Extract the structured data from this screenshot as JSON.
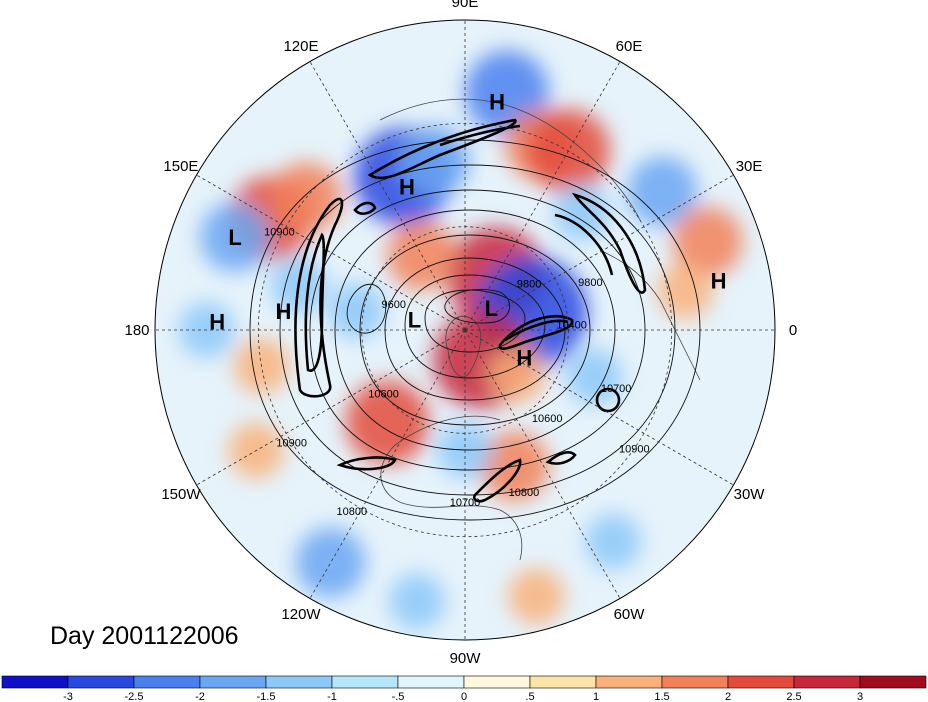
{
  "date_label": "Day 2001122006",
  "longitude_labels": [
    {
      "text": "90E",
      "lon": 90
    },
    {
      "text": "60E",
      "lon": 60
    },
    {
      "text": "30E",
      "lon": 30
    },
    {
      "text": "0",
      "lon": 0
    },
    {
      "text": "30W",
      "lon": -30
    },
    {
      "text": "60W",
      "lon": -60
    },
    {
      "text": "90W",
      "lon": -90
    },
    {
      "text": "120W",
      "lon": -120
    },
    {
      "text": "150W",
      "lon": -150
    },
    {
      "text": "180",
      "lon": 180
    },
    {
      "text": "150E",
      "lon": 150
    },
    {
      "text": "120E",
      "lon": 120
    }
  ],
  "pressure_systems": [
    {
      "type": "H",
      "label": "H",
      "lon": 82,
      "lat": 23
    },
    {
      "type": "H",
      "label": "H",
      "lon": 112,
      "lat": 45
    },
    {
      "type": "L",
      "label": "L",
      "lon": 158,
      "lat": 18
    },
    {
      "type": "H",
      "label": "H",
      "lon": 178,
      "lat": 18
    },
    {
      "type": "H",
      "label": "H",
      "lon": 174,
      "lat": 37
    },
    {
      "type": "L",
      "label": "L",
      "lon": 168,
      "lat": 75
    },
    {
      "type": "L",
      "label": "L",
      "lon": 40,
      "lat": 80
    },
    {
      "type": "H",
      "label": "H",
      "lon": -25,
      "lat": 71
    },
    {
      "type": "H",
      "label": "H",
      "lon": 11,
      "lat": 15
    }
  ],
  "contour_labels": [
    {
      "text": "10900",
      "lon": 152,
      "lat": 29
    },
    {
      "text": "9600",
      "lon": 160,
      "lat": 68
    },
    {
      "text": "9800",
      "lon": 36,
      "lat": 67
    },
    {
      "text": "9800",
      "lon": 21,
      "lat": 51
    },
    {
      "text": "10400",
      "lon": 3,
      "lat": 59
    },
    {
      "text": "10700",
      "lon": -21,
      "lat": 43
    },
    {
      "text": "10600",
      "lon": -47,
      "lat": 55
    },
    {
      "text": "10900",
      "lon": -35,
      "lat": 30
    },
    {
      "text": "10800",
      "lon": -70,
      "lat": 40
    },
    {
      "text": "10700",
      "lon": -90,
      "lat": 40
    },
    {
      "text": "10600",
      "lon": -142,
      "lat": 60
    },
    {
      "text": "10900",
      "lon": -147,
      "lat": 30
    },
    {
      "text": "10800",
      "lon": -122,
      "lat": 28
    }
  ],
  "colorbar": {
    "colors": [
      "#1010c8",
      "#2848e0",
      "#4a80ee",
      "#6aa6f2",
      "#8cc8f8",
      "#b6e6fb",
      "#e0f6fc",
      "#fdf8de",
      "#fce4a8",
      "#f9b07a",
      "#f28058",
      "#e34a3a",
      "#c8263a",
      "#a00c1e"
    ],
    "tick_labels": [
      "-3",
      "-2.5",
      "-2",
      "-1.5",
      "-1",
      "-.5",
      "0",
      ".5",
      "1",
      "1.5",
      "2",
      "2.5",
      "3"
    ]
  },
  "anomaly_blobs": [
    {
      "lon": 80,
      "lat": 20,
      "r": 2.0,
      "cls": "neg"
    },
    {
      "lon": 112,
      "lat": 42,
      "r": 2.5,
      "cls": "neg"
    },
    {
      "lon": 100,
      "lat": 40,
      "r": 1.5,
      "cls": "neg"
    },
    {
      "lon": 68,
      "lat": 32,
      "r": 1.5,
      "cls": "pos"
    },
    {
      "lon": 60,
      "lat": 30,
      "r": 2.0,
      "cls": "pos"
    },
    {
      "lon": 45,
      "lat": 42,
      "r": 1.0,
      "cls": "neg"
    },
    {
      "lon": 35,
      "lat": 20,
      "r": 1.5,
      "cls": "neg"
    },
    {
      "lon": 20,
      "lat": 15,
      "r": 1.5,
      "cls": "pos"
    },
    {
      "lon": 10,
      "lat": 25,
      "r": 1.0,
      "cls": "pos"
    },
    {
      "lon": 150,
      "lat": 25,
      "r": 2.0,
      "cls": "pos"
    },
    {
      "lon": 140,
      "lat": 30,
      "r": 1.5,
      "cls": "pos"
    },
    {
      "lon": 158,
      "lat": 18,
      "r": 1.5,
      "cls": "neg"
    },
    {
      "lon": 180,
      "lat": 15,
      "r": 1.0,
      "cls": "neg"
    },
    {
      "lon": 165,
      "lat": 40,
      "r": 1.0,
      "cls": "neg"
    },
    {
      "lon": -170,
      "lat": 30,
      "r": 1.0,
      "cls": "pos"
    },
    {
      "lon": -150,
      "lat": 20,
      "r": 1.0,
      "cls": "pos"
    },
    {
      "lon": -120,
      "lat": 12,
      "r": 1.5,
      "cls": "neg"
    },
    {
      "lon": -100,
      "lat": 10,
      "r": 1.0,
      "cls": "neg"
    },
    {
      "lon": -75,
      "lat": 10,
      "r": 1.0,
      "cls": "pos"
    },
    {
      "lon": -55,
      "lat": 15,
      "r": 1.0,
      "cls": "neg"
    },
    {
      "lon": 60,
      "lat": 72,
      "r": 2.5,
      "cls": "pos"
    },
    {
      "lon": 15,
      "lat": 70,
      "r": 3.0,
      "cls": "neg"
    },
    {
      "lon": -60,
      "lat": 80,
      "r": 2.5,
      "cls": "pos"
    },
    {
      "lon": 120,
      "lat": 65,
      "r": 1.5,
      "cls": "pos"
    },
    {
      "lon": -130,
      "lat": 55,
      "r": 2.0,
      "cls": "pos"
    },
    {
      "lon": -70,
      "lat": 48,
      "r": 1.5,
      "cls": "pos"
    },
    {
      "lon": -90,
      "lat": 55,
      "r": 1.0,
      "cls": "neg"
    },
    {
      "lon": -40,
      "lat": 70,
      "r": 1.0,
      "cls": "pos"
    },
    {
      "lon": 170,
      "lat": 58,
      "r": 1.0,
      "cls": "neg"
    },
    {
      "lon": -20,
      "lat": 50,
      "r": 1.0,
      "cls": "neg"
    }
  ]
}
